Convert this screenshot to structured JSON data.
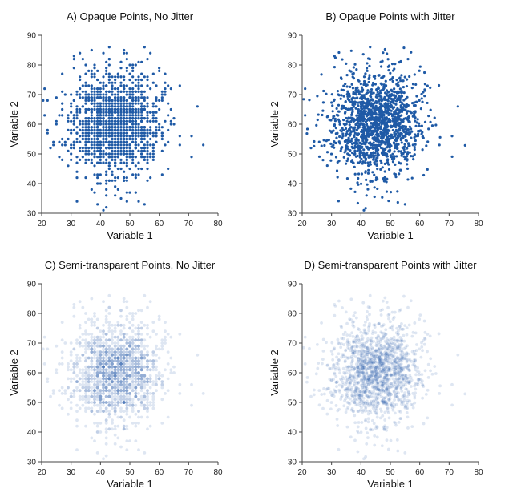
{
  "chart_data": [
    {
      "type": "scatter",
      "title": "A) Opaque Points, No Jitter",
      "xlabel": "Variable 1",
      "ylabel": "Variable 2",
      "xlim": [
        20,
        80
      ],
      "ylim": [
        30,
        90
      ],
      "xticks": [
        "20",
        "30",
        "40",
        "50",
        "60",
        "70",
        "80"
      ],
      "yticks": [
        "30",
        "40",
        "50",
        "60",
        "70",
        "80",
        "90"
      ],
      "grid": false,
      "point_color": "#1f5aa6",
      "opacity": 1.0,
      "jitter": false,
      "series": [
        {
          "name": "",
          "x": [],
          "y": []
        }
      ]
    },
    {
      "type": "scatter",
      "title": "B) Opaque Points with Jitter",
      "xlabel": "Variable 1",
      "ylabel": "Variable 2",
      "xlim": [
        20,
        80
      ],
      "ylim": [
        30,
        90
      ],
      "xticks": [
        "20",
        "30",
        "40",
        "50",
        "60",
        "70",
        "80"
      ],
      "yticks": [
        "30",
        "40",
        "50",
        "60",
        "70",
        "80",
        "90"
      ],
      "grid": false,
      "point_color": "#1f5aa6",
      "opacity": 1.0,
      "jitter": true,
      "series": [
        {
          "name": "",
          "x": [],
          "y": []
        }
      ]
    },
    {
      "type": "scatter",
      "title": "C) Semi-transparent Points, No Jitter",
      "xlabel": "Variable 1",
      "ylabel": "Variable 2",
      "xlim": [
        20,
        80
      ],
      "ylim": [
        30,
        90
      ],
      "xticks": [
        "20",
        "30",
        "40",
        "50",
        "60",
        "70",
        "80"
      ],
      "yticks": [
        "30",
        "40",
        "50",
        "60",
        "70",
        "80",
        "90"
      ],
      "grid": false,
      "point_color": "#1f5aa6",
      "opacity": 0.15,
      "jitter": false,
      "series": [
        {
          "name": "",
          "x": [],
          "y": []
        }
      ]
    },
    {
      "type": "scatter",
      "title": "D) Semi-transparent Points with Jitter",
      "xlabel": "Variable 1",
      "ylabel": "Variable 2",
      "xlim": [
        20,
        80
      ],
      "ylim": [
        30,
        90
      ],
      "xticks": [
        "20",
        "30",
        "40",
        "50",
        "60",
        "70",
        "80"
      ],
      "yticks": [
        "30",
        "40",
        "50",
        "60",
        "70",
        "80",
        "90"
      ],
      "grid": false,
      "point_color": "#1f5aa6",
      "opacity": 0.15,
      "jitter": true,
      "series": [
        {
          "name": "",
          "x": [],
          "y": []
        }
      ]
    }
  ]
}
